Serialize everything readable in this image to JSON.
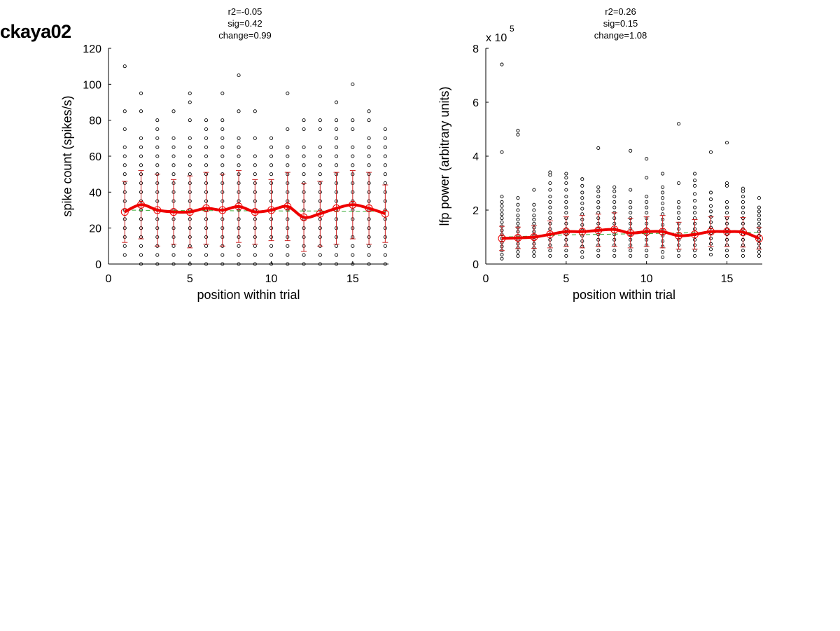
{
  "page_label": "ckaya02",
  "chart_data": [
    {
      "type": "scatter",
      "stats": [
        "r2=-0.05",
        "sig=0.42",
        "change=0.99"
      ],
      "xlabel": "position within trial",
      "ylabel": "spike count (spikes/s)",
      "xlim": [
        0,
        17.2
      ],
      "ylim": [
        0,
        120
      ],
      "xticks": [
        0,
        5,
        10,
        15
      ],
      "yticks": [
        0,
        20,
        40,
        60,
        80,
        100,
        120
      ],
      "y_multiplier": "",
      "y_multiplier_exp": "",
      "x": [
        1,
        2,
        3,
        4,
        5,
        6,
        7,
        8,
        9,
        10,
        11,
        12,
        13,
        14,
        15,
        16,
        17
      ],
      "mean": [
        29,
        33,
        30,
        29,
        29,
        31,
        30,
        32,
        29,
        30,
        32,
        26,
        28,
        31,
        33,
        31,
        28
      ],
      "sd": [
        17,
        19,
        20,
        18,
        20,
        20,
        20,
        20,
        18,
        17,
        19,
        19,
        18,
        20,
        19,
        20,
        16
      ],
      "trend": [
        30,
        29.9,
        29.8,
        29.8,
        29.7,
        29.7,
        29.7,
        29.6,
        29.6,
        29.6,
        29.5,
        29.5,
        29.5,
        29.4,
        29.4,
        29.4,
        29.3
      ],
      "points": [
        [
          5,
          10,
          15,
          20,
          25,
          30,
          35,
          40,
          45,
          50,
          55,
          60,
          65,
          75,
          85,
          110
        ],
        [
          0,
          5,
          10,
          15,
          20,
          25,
          30,
          35,
          40,
          45,
          50,
          55,
          60,
          65,
          70,
          85,
          95
        ],
        [
          0,
          5,
          10,
          15,
          20,
          25,
          30,
          35,
          40,
          45,
          50,
          55,
          60,
          65,
          70,
          75,
          80
        ],
        [
          0,
          5,
          10,
          15,
          20,
          25,
          30,
          35,
          40,
          45,
          50,
          55,
          60,
          65,
          70,
          85
        ],
        [
          0,
          5,
          10,
          15,
          20,
          25,
          30,
          35,
          40,
          45,
          50,
          55,
          60,
          65,
          70,
          80,
          90,
          95
        ],
        [
          0,
          5,
          10,
          15,
          20,
          25,
          30,
          35,
          40,
          45,
          50,
          55,
          60,
          65,
          70,
          75,
          80
        ],
        [
          0,
          5,
          10,
          15,
          20,
          25,
          30,
          35,
          40,
          45,
          50,
          55,
          60,
          65,
          70,
          75,
          80,
          95
        ],
        [
          0,
          5,
          10,
          15,
          20,
          25,
          30,
          35,
          40,
          45,
          50,
          55,
          60,
          65,
          70,
          85,
          105
        ],
        [
          0,
          5,
          10,
          15,
          20,
          25,
          30,
          35,
          40,
          45,
          50,
          55,
          60,
          70,
          85
        ],
        [
          0,
          5,
          10,
          15,
          20,
          25,
          30,
          35,
          40,
          45,
          50,
          55,
          60,
          65,
          70
        ],
        [
          0,
          5,
          10,
          15,
          20,
          25,
          30,
          35,
          40,
          45,
          50,
          55,
          60,
          65,
          75,
          95
        ],
        [
          0,
          5,
          10,
          15,
          20,
          25,
          30,
          35,
          40,
          45,
          50,
          55,
          60,
          65,
          75,
          80
        ],
        [
          0,
          5,
          10,
          15,
          20,
          25,
          30,
          35,
          40,
          45,
          50,
          55,
          60,
          65,
          75,
          80
        ],
        [
          0,
          5,
          10,
          15,
          20,
          25,
          30,
          35,
          40,
          45,
          50,
          55,
          60,
          65,
          70,
          75,
          80,
          90
        ],
        [
          0,
          5,
          10,
          15,
          20,
          25,
          30,
          35,
          40,
          45,
          50,
          55,
          60,
          65,
          75,
          80,
          100
        ],
        [
          0,
          5,
          10,
          15,
          20,
          25,
          30,
          35,
          40,
          45,
          50,
          55,
          60,
          65,
          70,
          80,
          85
        ],
        [
          0,
          5,
          10,
          15,
          20,
          25,
          30,
          35,
          40,
          45,
          50,
          55,
          60,
          65,
          70,
          75
        ]
      ]
    },
    {
      "type": "scatter",
      "stats": [
        "r2=0.26",
        "sig=0.15",
        "change=1.08"
      ],
      "xlabel": "position within trial",
      "ylabel": "lfp power (arbitrary units)",
      "xlim": [
        0,
        17.2
      ],
      "ylim": [
        0,
        8
      ],
      "xticks": [
        0,
        5,
        10,
        15
      ],
      "yticks": [
        0,
        2,
        4,
        6,
        8
      ],
      "y_multiplier": "x 10",
      "y_multiplier_exp": "5",
      "x": [
        1,
        2,
        3,
        4,
        5,
        6,
        7,
        8,
        9,
        10,
        11,
        12,
        13,
        14,
        15,
        16,
        17
      ],
      "mean": [
        0.95,
        0.97,
        1.0,
        1.1,
        1.2,
        1.2,
        1.25,
        1.28,
        1.15,
        1.2,
        1.2,
        1.05,
        1.1,
        1.2,
        1.2,
        1.18,
        0.95
      ],
      "sd": [
        0.45,
        0.4,
        0.42,
        0.5,
        0.55,
        0.6,
        0.6,
        0.62,
        0.55,
        0.55,
        0.6,
        0.5,
        0.55,
        0.55,
        0.55,
        0.55,
        0.4
      ],
      "trend": [
        1.0,
        1.02,
        1.04,
        1.06,
        1.08,
        1.09,
        1.1,
        1.11,
        1.12,
        1.13,
        1.14,
        1.15,
        1.16,
        1.16,
        1.17,
        1.17,
        1.18
      ],
      "points": [
        [
          0.2,
          0.35,
          0.5,
          0.65,
          0.8,
          0.95,
          1.1,
          1.25,
          1.4,
          1.55,
          1.7,
          1.85,
          2.0,
          2.15,
          2.3,
          2.5,
          4.15,
          7.4
        ],
        [
          0.3,
          0.45,
          0.6,
          0.75,
          0.9,
          1.05,
          1.2,
          1.35,
          1.5,
          1.65,
          1.8,
          2.0,
          2.2,
          2.45,
          4.8,
          4.95
        ],
        [
          0.3,
          0.45,
          0.6,
          0.75,
          0.9,
          1.05,
          1.2,
          1.35,
          1.5,
          1.65,
          1.8,
          2.0,
          2.2,
          2.75
        ],
        [
          0.3,
          0.5,
          0.7,
          0.9,
          1.1,
          1.3,
          1.5,
          1.7,
          1.9,
          2.1,
          2.3,
          2.5,
          2.75,
          3.0,
          3.3,
          3.4
        ],
        [
          0.3,
          0.5,
          0.7,
          0.9,
          1.1,
          1.3,
          1.5,
          1.7,
          1.9,
          2.1,
          2.3,
          2.5,
          2.75,
          3.0,
          3.2,
          3.35
        ],
        [
          0.25,
          0.45,
          0.65,
          0.85,
          1.05,
          1.25,
          1.45,
          1.65,
          1.85,
          2.05,
          2.25,
          2.45,
          2.65,
          2.9,
          3.15
        ],
        [
          0.3,
          0.5,
          0.7,
          0.9,
          1.1,
          1.3,
          1.5,
          1.7,
          1.9,
          2.1,
          2.3,
          2.5,
          2.7,
          2.85,
          4.3
        ],
        [
          0.3,
          0.5,
          0.7,
          0.9,
          1.1,
          1.3,
          1.5,
          1.7,
          1.9,
          2.1,
          2.3,
          2.5,
          2.7,
          2.85
        ],
        [
          0.3,
          0.5,
          0.7,
          0.9,
          1.1,
          1.3,
          1.5,
          1.7,
          1.9,
          2.1,
          2.3,
          2.75,
          4.2
        ],
        [
          0.3,
          0.5,
          0.7,
          0.9,
          1.1,
          1.3,
          1.5,
          1.7,
          1.9,
          2.1,
          2.3,
          2.5,
          3.2,
          3.9
        ],
        [
          0.25,
          0.45,
          0.65,
          0.85,
          1.05,
          1.25,
          1.45,
          1.65,
          1.85,
          2.05,
          2.25,
          2.45,
          2.65,
          2.85,
          3.35
        ],
        [
          0.3,
          0.5,
          0.7,
          0.9,
          1.1,
          1.3,
          1.5,
          1.7,
          1.9,
          2.1,
          2.3,
          3.0,
          5.2
        ],
        [
          0.3,
          0.5,
          0.7,
          0.9,
          1.1,
          1.3,
          1.5,
          1.7,
          1.9,
          2.1,
          2.35,
          2.6,
          2.9,
          3.1,
          3.35
        ],
        [
          0.35,
          0.55,
          0.75,
          0.95,
          1.15,
          1.35,
          1.55,
          1.75,
          1.95,
          2.15,
          2.4,
          2.65,
          4.15
        ],
        [
          0.3,
          0.5,
          0.7,
          0.9,
          1.1,
          1.3,
          1.5,
          1.7,
          1.9,
          2.1,
          2.3,
          2.9,
          3.0,
          4.5
        ],
        [
          0.3,
          0.5,
          0.7,
          0.9,
          1.1,
          1.3,
          1.5,
          1.7,
          1.9,
          2.1,
          2.3,
          2.5,
          2.7,
          2.8
        ],
        [
          0.3,
          0.45,
          0.6,
          0.75,
          0.9,
          1.05,
          1.2,
          1.35,
          1.5,
          1.65,
          1.8,
          1.95,
          2.1,
          2.45
        ]
      ]
    }
  ]
}
